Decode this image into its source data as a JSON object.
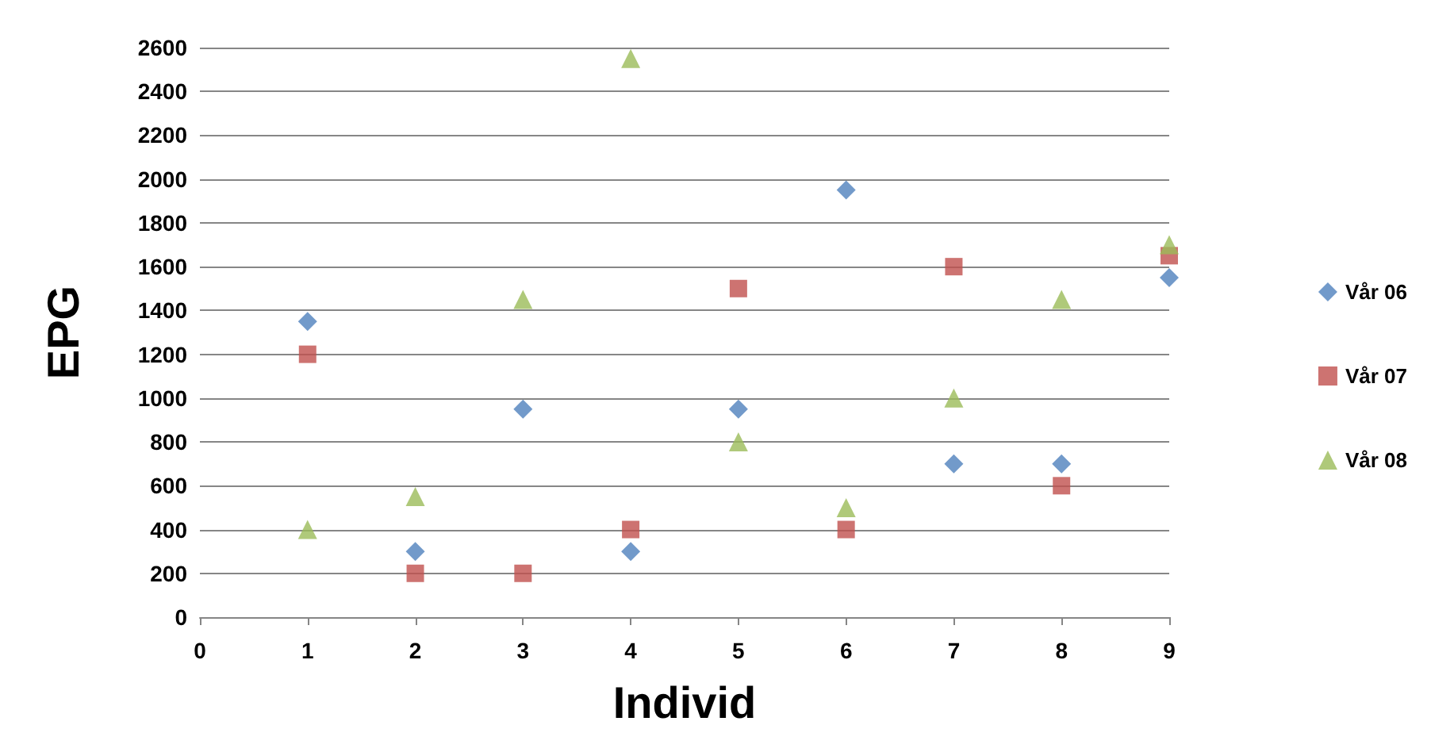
{
  "chart_data": {
    "type": "scatter",
    "xlabel": "Individ",
    "ylabel": "EPG",
    "x": [
      1,
      2,
      3,
      4,
      5,
      6,
      7,
      8,
      9
    ],
    "series": [
      {
        "name": "Vår 06",
        "color": "#4f81bd",
        "marker": "diamond",
        "values": [
          1350,
          300,
          950,
          300,
          950,
          1950,
          700,
          700,
          1550
        ]
      },
      {
        "name": "Vår 07",
        "color": "#c0504d",
        "marker": "square",
        "values": [
          1200,
          200,
          200,
          400,
          1500,
          400,
          1600,
          600,
          1650
        ]
      },
      {
        "name": "Vår 08",
        "color": "#9bbb59",
        "marker": "triangle",
        "values": [
          400,
          550,
          1450,
          2550,
          800,
          500,
          1000,
          1450,
          1700
        ]
      }
    ],
    "xlim": [
      0,
      9
    ],
    "xticks": [
      0,
      1,
      2,
      3,
      4,
      5,
      6,
      7,
      8,
      9
    ],
    "ylim": [
      0,
      2600
    ],
    "yticks": [
      0,
      200,
      400,
      600,
      800,
      1000,
      1200,
      1400,
      1600,
      1800,
      2000,
      2200,
      2400,
      2600
    ],
    "grid": "y",
    "legend": "right"
  }
}
